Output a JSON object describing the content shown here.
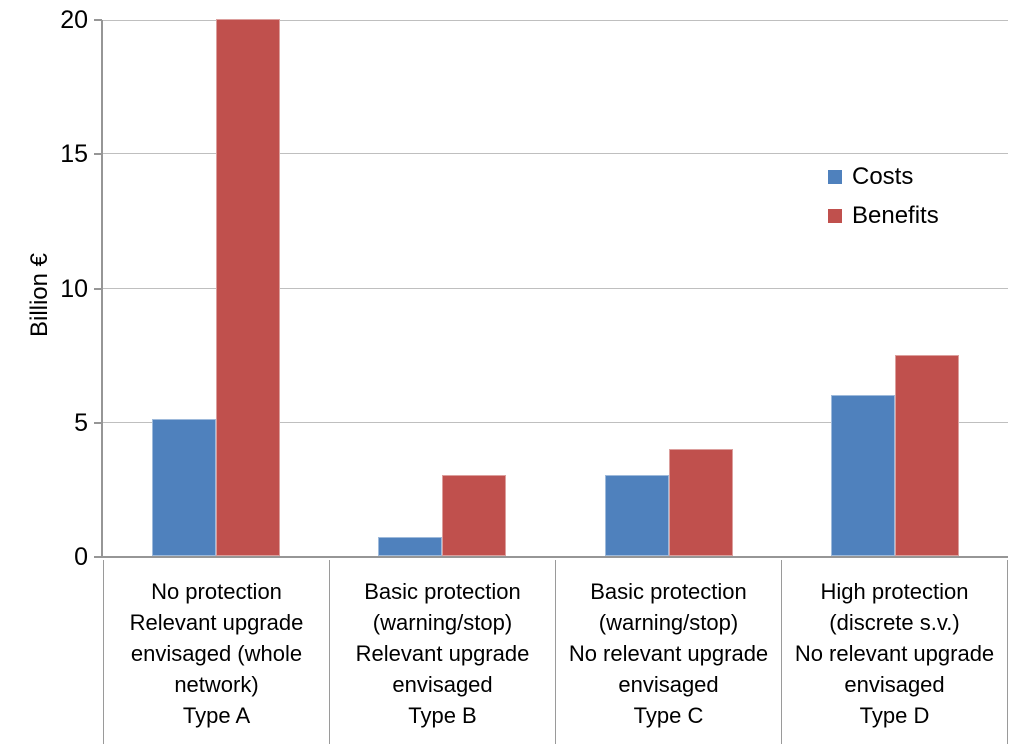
{
  "chart_data": {
    "type": "bar",
    "title": "",
    "ylabel": "Billion €",
    "xlabel": "",
    "ylim": [
      0,
      20
    ],
    "yticks": [
      0,
      5,
      10,
      15,
      20
    ],
    "grid": true,
    "legend_position": "upper-right",
    "categories": [
      [
        "No protection",
        "Relevant upgrade",
        "envisaged (whole",
        "network)",
        "Type A"
      ],
      [
        "Basic protection",
        "(warning/stop)",
        "Relevant upgrade",
        "envisaged",
        "Type B"
      ],
      [
        "Basic protection",
        "(warning/stop)",
        "No relevant upgrade",
        "envisaged",
        "Type C"
      ],
      [
        "High protection",
        "(discrete s.v.)",
        "No relevant upgrade",
        "envisaged",
        "Type D"
      ]
    ],
    "series": [
      {
        "name": "Costs",
        "color": "#4F81BD",
        "values": [
          5.1,
          0.7,
          3,
          6
        ]
      },
      {
        "name": "Benefits",
        "color": "#C0504D",
        "values": [
          20,
          3,
          4,
          7.5
        ]
      }
    ]
  }
}
